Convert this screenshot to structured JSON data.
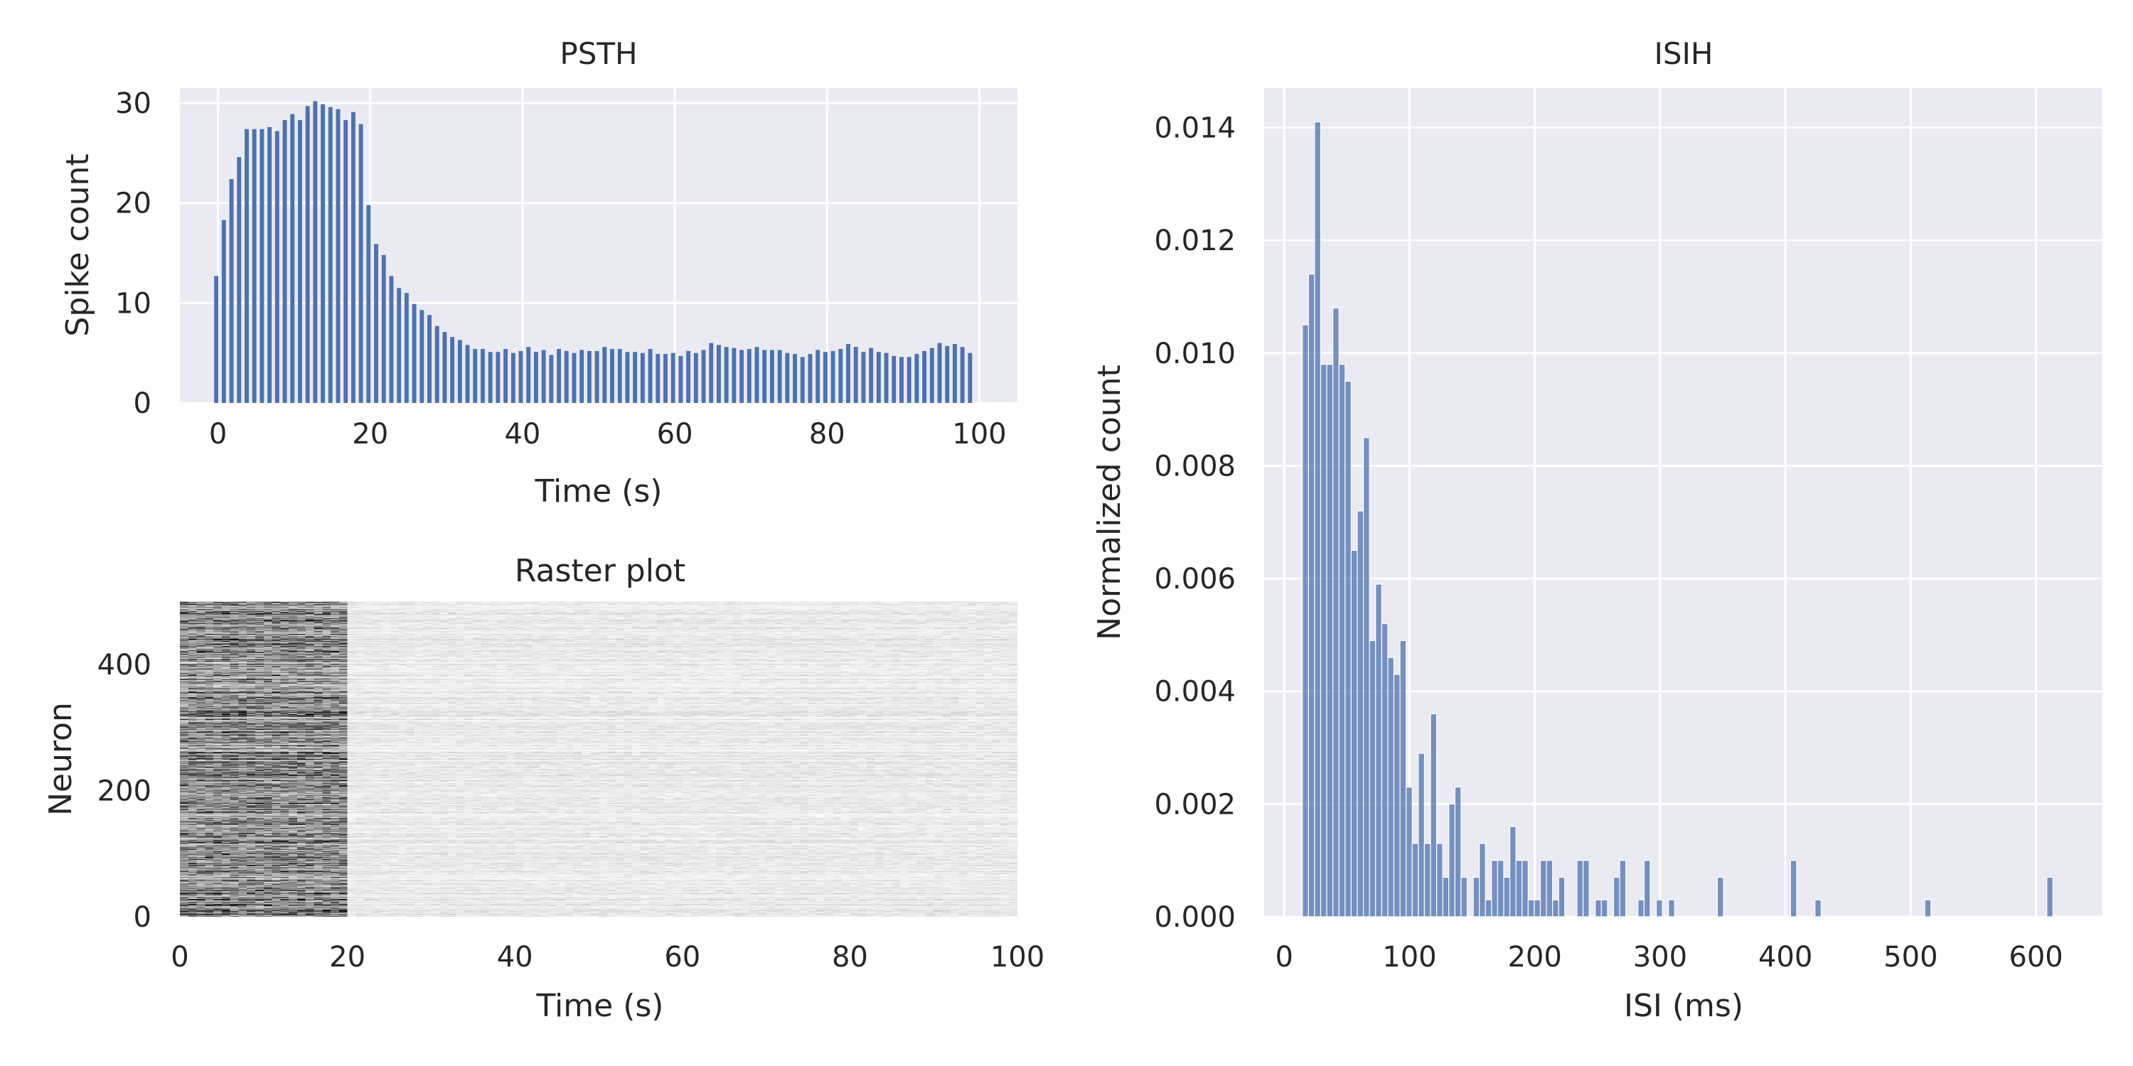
{
  "chart_data": [
    {
      "type": "bar",
      "title": "PSTH",
      "xlabel": "Time (s)",
      "ylabel": "Spike count",
      "xlim": [
        -5,
        105
      ],
      "ylim": [
        0,
        31.5
      ],
      "xticks": [
        0,
        20,
        40,
        60,
        80,
        100
      ],
      "yticks": [
        0,
        10,
        20,
        30
      ],
      "grid": true,
      "bar_color": "#4c72b0",
      "x_start": 0,
      "x_step": 1,
      "values": [
        12.7,
        18.3,
        22.4,
        24.6,
        27.4,
        27.4,
        27.4,
        27.6,
        27.2,
        28.3,
        28.9,
        28.3,
        29.7,
        30.2,
        29.9,
        29.6,
        29.4,
        28.3,
        29.1,
        27.9,
        19.8,
        15.9,
        14.8,
        12.7,
        11.5,
        11.0,
        9.9,
        9.3,
        8.8,
        7.7,
        7.1,
        6.6,
        6.3,
        5.8,
        5.4,
        5.4,
        5.1,
        5.1,
        5.4,
        5.0,
        5.2,
        5.6,
        5.1,
        5.3,
        4.8,
        5.4,
        5.2,
        5.0,
        5.3,
        5.2,
        5.2,
        5.6,
        5.4,
        5.4,
        5.1,
        5.1,
        5.0,
        5.4,
        4.9,
        4.9,
        5.0,
        4.7,
        5.2,
        5.0,
        5.3,
        6.0,
        5.8,
        5.6,
        5.5,
        5.3,
        5.4,
        5.6,
        5.3,
        5.3,
        5.3,
        5.0,
        4.9,
        4.6,
        4.9,
        5.3,
        5.1,
        5.2,
        5.4,
        5.9,
        5.6,
        5.1,
        5.5,
        5.1,
        5.0,
        4.7,
        4.6,
        4.6,
        4.9,
        5.2,
        5.5,
        6.0,
        5.7,
        5.9,
        5.6,
        5.0
      ]
    },
    {
      "type": "heatmap",
      "title": "Raster plot",
      "xlabel": "Time (s)",
      "ylabel": "Neuron",
      "xlim": [
        0,
        100
      ],
      "ylim": [
        0,
        500
      ],
      "xticks": [
        0,
        20,
        40,
        60,
        80,
        100
      ],
      "yticks": [
        0,
        200,
        400
      ],
      "colormap": "white-to-black",
      "neurons": 500,
      "time_bins": 100,
      "high_activity_window": [
        0,
        20
      ],
      "high_activity_rate": 0.56,
      "baseline_rate": 0.1
    },
    {
      "type": "bar",
      "title": "ISIH",
      "xlabel": "ISI (ms)",
      "ylabel": "Normalized count",
      "xlim": [
        -16,
        653
      ],
      "ylim": [
        0,
        0.0147
      ],
      "xticks": [
        0,
        100,
        200,
        300,
        400,
        500,
        600
      ],
      "yticks": [
        "0.000",
        "0.002",
        "0.004",
        "0.006",
        "0.008",
        "0.010",
        "0.012",
        "0.014"
      ],
      "grid": true,
      "bar_color": "#4c72b0",
      "bin_start": 14.5,
      "bin_width": 4.87,
      "values": [
        0.0105,
        0.0114,
        0.0141,
        0.0098,
        0.0098,
        0.0108,
        0.0098,
        0.0095,
        0.0065,
        0.0072,
        0.0085,
        0.0049,
        0.0059,
        0.0052,
        0.0046,
        0.0043,
        0.0049,
        0.0023,
        0.0013,
        0.0029,
        0.0013,
        0.0036,
        0.0013,
        0.0007,
        0.002,
        0.0023,
        0.0007,
        0,
        0.0007,
        0.0013,
        0.0003,
        0.001,
        0.001,
        0.0007,
        0.0016,
        0.001,
        0.001,
        0.0003,
        0.0003,
        0.001,
        0.001,
        0.0003,
        0.0007,
        0,
        0,
        0.001,
        0.001,
        0,
        0.0003,
        0.0003,
        0,
        0.0007,
        0.001,
        0,
        0,
        0.0003,
        0.001,
        0,
        0.0003,
        0,
        0.0003,
        0,
        0,
        0,
        0,
        0,
        0,
        0,
        0.0007,
        0,
        0,
        0,
        0,
        0,
        0,
        0,
        0,
        0,
        0,
        0,
        0.001,
        0,
        0,
        0,
        0.0003,
        0,
        0,
        0,
        0,
        0,
        0,
        0,
        0,
        0,
        0,
        0,
        0,
        0,
        0,
        0,
        0,
        0,
        0.0003,
        0,
        0,
        0,
        0,
        0,
        0,
        0,
        0,
        0,
        0,
        0,
        0,
        0,
        0,
        0,
        0,
        0,
        0,
        0,
        0.0007
      ]
    }
  ]
}
